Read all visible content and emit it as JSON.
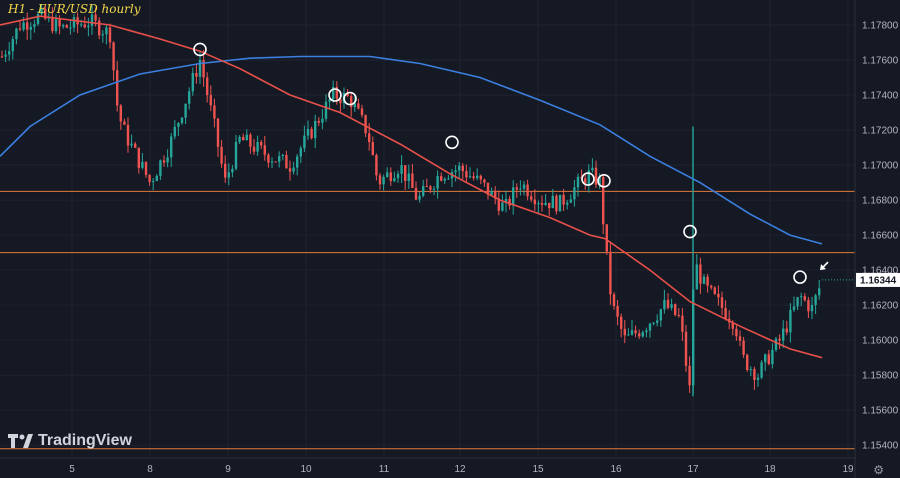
{
  "header": {
    "title": "H1 - EUR/USD hourly"
  },
  "watermark": {
    "text": "TradingView"
  },
  "chart_data": {
    "type": "candlestick",
    "symbol": "EUR/USD",
    "timeframe": "hourly",
    "ylim": [
      1.1535,
      1.179
    ],
    "y_ticks": [
      "1.17800",
      "1.17600",
      "1.17400",
      "1.17200",
      "1.17000",
      "1.16800",
      "1.16600",
      "1.16400",
      "1.16200",
      "1.16000",
      "1.15800",
      "1.15600",
      "1.15400"
    ],
    "x_ticks": [
      "5",
      "8",
      "9",
      "10",
      "11",
      "12",
      "15",
      "16",
      "17",
      "18",
      "19"
    ],
    "last_price": "1.16344",
    "colors": {
      "bg": "#151924",
      "up": "#26a69a",
      "down": "#ef5350",
      "ma_fast": "#e8504a",
      "ma_slow": "#3b7fe0",
      "hline": "#e07a3a",
      "last_price_bg": "#ffffff"
    },
    "horizontal_levels": [
      1.1685,
      1.165,
      1.1538
    ],
    "ma_fast": [
      [
        0,
        1.178
      ],
      [
        40,
        1.1785
      ],
      [
        110,
        1.178
      ],
      [
        160,
        1.1772
      ],
      [
        200,
        1.1765
      ],
      [
        240,
        1.1755
      ],
      [
        290,
        1.174
      ],
      [
        340,
        1.173
      ],
      [
        400,
        1.1712
      ],
      [
        450,
        1.1695
      ],
      [
        500,
        1.168
      ],
      [
        550,
        1.167
      ],
      [
        590,
        1.166
      ],
      [
        605,
        1.1658
      ],
      [
        650,
        1.164
      ],
      [
        690,
        1.1622
      ],
      [
        740,
        1.1608
      ],
      [
        790,
        1.1595
      ],
      [
        822,
        1.159
      ]
    ],
    "ma_slow": [
      [
        0,
        1.1705
      ],
      [
        30,
        1.1722
      ],
      [
        80,
        1.174
      ],
      [
        140,
        1.1752
      ],
      [
        200,
        1.1758
      ],
      [
        250,
        1.1761
      ],
      [
        300,
        1.1762
      ],
      [
        370,
        1.1762
      ],
      [
        420,
        1.1758
      ],
      [
        480,
        1.175
      ],
      [
        540,
        1.1737
      ],
      [
        600,
        1.1723
      ],
      [
        650,
        1.1705
      ],
      [
        700,
        1.169
      ],
      [
        750,
        1.1672
      ],
      [
        790,
        1.166
      ],
      [
        822,
        1.1655
      ]
    ],
    "anchors": [
      [
        0,
        1.176
      ],
      [
        20,
        1.178
      ],
      [
        40,
        1.1785
      ],
      [
        60,
        1.1778
      ],
      [
        90,
        1.1782
      ],
      [
        110,
        1.1775
      ],
      [
        118,
        1.173
      ],
      [
        125,
        1.1718
      ],
      [
        150,
        1.169
      ],
      [
        170,
        1.1712
      ],
      [
        200,
        1.176
      ],
      [
        215,
        1.172
      ],
      [
        225,
        1.169
      ],
      [
        240,
        1.1715
      ],
      [
        270,
        1.1705
      ],
      [
        290,
        1.17
      ],
      [
        310,
        1.1718
      ],
      [
        333,
        1.174
      ],
      [
        350,
        1.1738
      ],
      [
        368,
        1.1718
      ],
      [
        378,
        1.169
      ],
      [
        400,
        1.17
      ],
      [
        418,
        1.168
      ],
      [
        440,
        1.1695
      ],
      [
        460,
        1.1698
      ],
      [
        480,
        1.169
      ],
      [
        505,
        1.1675
      ],
      [
        520,
        1.169
      ],
      [
        540,
        1.168
      ],
      [
        560,
        1.1678
      ],
      [
        580,
        1.169
      ],
      [
        590,
        1.1695
      ],
      [
        600,
        1.169
      ],
      [
        606,
        1.165
      ],
      [
        612,
        1.162
      ],
      [
        625,
        1.16
      ],
      [
        645,
        1.1608
      ],
      [
        665,
        1.162
      ],
      [
        680,
        1.1612
      ],
      [
        690,
        1.157
      ],
      [
        694,
        1.1645
      ],
      [
        705,
        1.163
      ],
      [
        720,
        1.162
      ],
      [
        735,
        1.161
      ],
      [
        742,
        1.159
      ],
      [
        758,
        1.158
      ],
      [
        768,
        1.159
      ],
      [
        780,
        1.16
      ],
      [
        800,
        1.1625
      ],
      [
        812,
        1.1618
      ],
      [
        822,
        1.1634
      ]
    ],
    "candle_start_x": 2,
    "candle_end_x": 822,
    "candle_spacing": 3.6,
    "wicks_special": [
      [
        693,
        1.1568,
        1.1722
      ]
    ],
    "touch_circles": [
      [
        200,
        1.1766
      ],
      [
        335,
        1.174
      ],
      [
        350,
        1.1738
      ],
      [
        452,
        1.1713
      ],
      [
        588,
        1.1692
      ],
      [
        604,
        1.1691
      ],
      [
        690,
        1.1662
      ],
      [
        800,
        1.1636
      ]
    ],
    "arrow": [
      828,
      1.164
    ]
  }
}
